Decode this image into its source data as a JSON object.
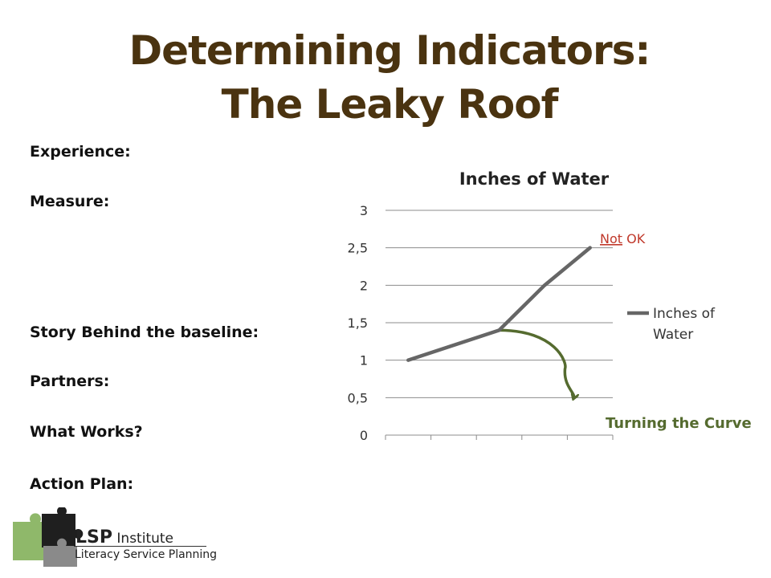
{
  "title": {
    "line1": "Determining Indicators:",
    "line2": "The Leaky Roof"
  },
  "labels": [
    "Experience:",
    "Measure:",
    "Story Behind the baseline:",
    "Partners:",
    "What Works?",
    "Action Plan:"
  ],
  "chart_data": {
    "type": "line",
    "title": "Inches of Water",
    "x": [
      1,
      2,
      3,
      4,
      5
    ],
    "xlabel": "",
    "ylabel": "",
    "ylim": [
      0,
      3
    ],
    "yticks": [
      "0",
      "0,5",
      "1",
      "1,5",
      "2",
      "2,5",
      "3"
    ],
    "grid": true,
    "legend": "right",
    "series": [
      {
        "name": "Inches of Water",
        "values": [
          1,
          1.2,
          1.4,
          2.0,
          2.5
        ],
        "color": "#666666"
      }
    ],
    "curve_annotation": {
      "label": "Turning the Curve",
      "color": "#556b2f",
      "points": [
        [
          3,
          1.4
        ],
        [
          4.5,
          0.5
        ]
      ]
    },
    "annotations": [
      {
        "text_underlined": "Not",
        "text": " OK",
        "color": "#c0392b"
      }
    ]
  },
  "logo": {
    "name": "LSP",
    "institute": "Institute",
    "subtitle": "Literacy Service Planning"
  }
}
